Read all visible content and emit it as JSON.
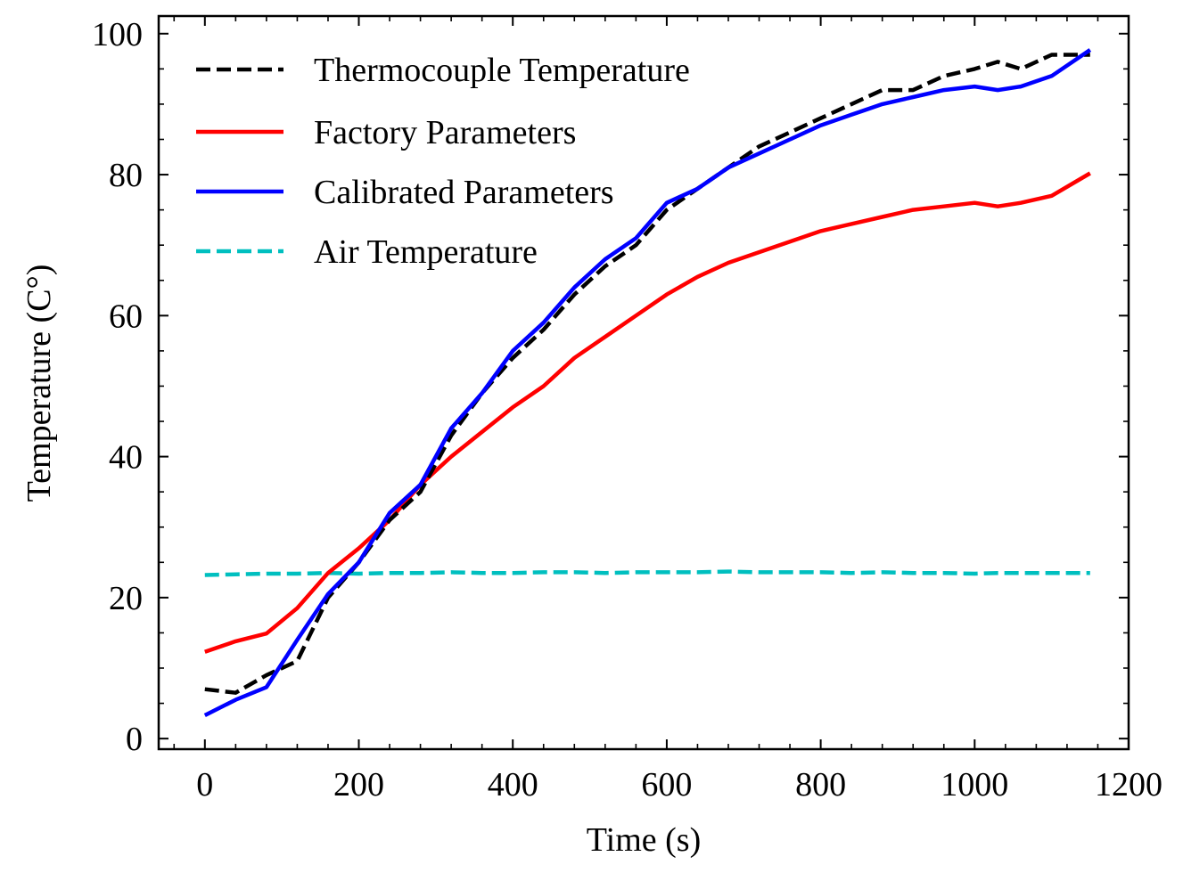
{
  "chart_data": {
    "type": "line",
    "title": "",
    "xlabel": "Time (s)",
    "ylabel": "Temperature (C°)",
    "xlim": [
      -60,
      1200
    ],
    "ylim": [
      -1.5,
      102.5
    ],
    "xticks": [
      0,
      200,
      400,
      600,
      800,
      1000,
      1200
    ],
    "yticks": [
      0,
      20,
      40,
      60,
      80,
      100
    ],
    "xminor_step": 40,
    "yminor_step": 5,
    "legend_position": "top-left",
    "series": [
      {
        "name": "Thermocouple Temperature",
        "color": "#000000",
        "style": "dashed",
        "x": [
          0,
          40,
          80,
          120,
          160,
          200,
          240,
          280,
          320,
          360,
          400,
          440,
          480,
          520,
          560,
          600,
          640,
          680,
          720,
          760,
          800,
          840,
          880,
          920,
          960,
          1000,
          1030,
          1060,
          1100,
          1150
        ],
        "y": [
          7,
          6.5,
          9,
          11,
          20,
          25,
          31,
          35,
          43,
          49,
          54,
          58,
          63,
          67,
          70,
          75,
          78,
          81,
          84,
          86,
          88,
          90,
          92,
          92,
          94,
          95,
          96,
          95,
          97,
          97
        ]
      },
      {
        "name": "Factory Parameters",
        "color": "#ff0000",
        "style": "solid",
        "x": [
          0,
          40,
          80,
          120,
          160,
          200,
          240,
          280,
          320,
          360,
          400,
          440,
          480,
          520,
          560,
          600,
          640,
          680,
          720,
          760,
          800,
          840,
          880,
          920,
          960,
          1000,
          1030,
          1060,
          1100,
          1150
        ],
        "y": [
          12.3,
          13.8,
          14.9,
          18.5,
          23.5,
          27,
          31,
          36,
          40,
          43.5,
          47,
          50,
          54,
          57,
          60,
          63,
          65.5,
          67.5,
          69,
          70.5,
          72,
          73,
          74,
          75,
          75.5,
          76,
          75.5,
          76,
          77,
          80.2
        ]
      },
      {
        "name": "Calibrated Parameters",
        "color": "#0000ff",
        "style": "solid",
        "x": [
          0,
          40,
          80,
          120,
          160,
          200,
          240,
          280,
          320,
          360,
          400,
          440,
          480,
          520,
          560,
          600,
          640,
          680,
          720,
          760,
          800,
          840,
          880,
          920,
          960,
          1000,
          1030,
          1060,
          1100,
          1150
        ],
        "y": [
          3.3,
          5.5,
          7.3,
          14,
          20.5,
          25,
          32,
          36,
          44,
          49,
          55,
          59,
          64,
          68,
          71,
          76,
          78,
          81,
          83,
          85,
          87,
          88.5,
          90,
          91,
          92,
          92.5,
          92,
          92.5,
          94,
          97.7
        ]
      },
      {
        "name": "Air Temperature",
        "color": "#00bfbf",
        "style": "dashed",
        "x": [
          0,
          40,
          80,
          120,
          160,
          200,
          240,
          280,
          320,
          360,
          400,
          440,
          480,
          520,
          560,
          600,
          640,
          680,
          720,
          760,
          800,
          840,
          880,
          920,
          960,
          1000,
          1030,
          1060,
          1100,
          1150
        ],
        "y": [
          23.2,
          23.3,
          23.4,
          23.4,
          23.5,
          23.4,
          23.5,
          23.5,
          23.6,
          23.5,
          23.5,
          23.6,
          23.6,
          23.5,
          23.6,
          23.6,
          23.6,
          23.7,
          23.6,
          23.6,
          23.6,
          23.5,
          23.6,
          23.5,
          23.5,
          23.4,
          23.5,
          23.5,
          23.5,
          23.5
        ]
      }
    ]
  }
}
